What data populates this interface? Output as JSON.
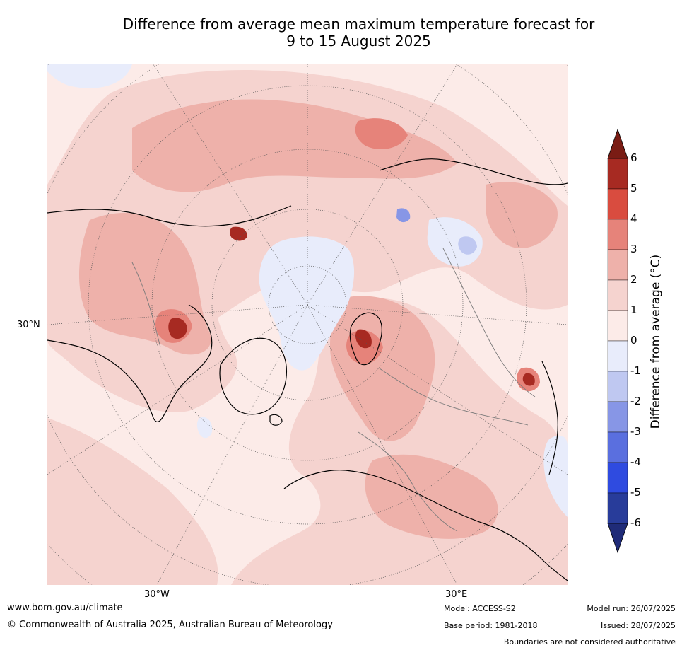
{
  "title_line1": "Difference from average mean maximum temperature forecast for",
  "title_line2": "9 to 15 August 2025",
  "map_labels": {
    "lat": "30°N",
    "lon_left": "30°W",
    "lon_right": "30°E"
  },
  "colorbar": {
    "label": "Difference from average (°C)",
    "ticks": [
      "6",
      "5",
      "4",
      "3",
      "2",
      "1",
      "0",
      "-1",
      "-2",
      "-3",
      "-4",
      "-5",
      "-6"
    ],
    "colors_warm": [
      "#7a1c14",
      "#a72a22",
      "#d94c3f",
      "#e6837a",
      "#eeb1aa",
      "#f5d3cf",
      "#fcebe8"
    ],
    "colors_cool": [
      "#e8ecfb",
      "#bfc8f1",
      "#8796e6",
      "#5a6fdf",
      "#2f4be0",
      "#283c9a",
      "#1f2b78"
    ]
  },
  "footer": {
    "url": "www.bom.gov.au/climate",
    "copyright": "© Commonwealth of Australia 2025, Australian Bureau of Meteorology",
    "model": "Model: ACCESS-S2",
    "base_period": "Base period: 1981-2018",
    "model_run": "Model run: 26/07/2025",
    "issued": "Issued: 28/07/2025",
    "disclaimer": "Boundaries are not considered authoritative"
  }
}
